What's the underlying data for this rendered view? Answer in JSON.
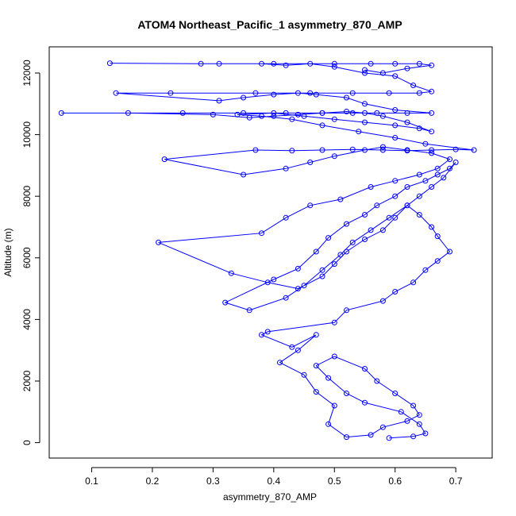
{
  "chart_data": {
    "type": "line",
    "title": "ATOM4 Northeast_Pacific_1 asymmetry_870_AMP",
    "xlabel": "asymmetry_870_AMP",
    "ylabel": "Altitude (m)",
    "xlim": [
      0.03,
      0.76
    ],
    "ylim": [
      -500,
      12850
    ],
    "x_ticks": [
      0.1,
      0.2,
      0.3,
      0.4,
      0.5,
      0.6,
      0.7
    ],
    "y_ticks": [
      0,
      2000,
      4000,
      6000,
      8000,
      10000,
      12000
    ],
    "grid": false,
    "legend": "none",
    "series": [
      {
        "color": "#0000ff",
        "marker": "open-circle",
        "x": [
          0.59,
          0.63,
          0.65,
          0.64,
          0.61,
          0.55,
          0.52,
          0.49,
          0.47,
          0.5,
          0.55,
          0.57,
          0.6,
          0.63,
          0.64,
          0.62,
          0.58,
          0.56,
          0.52,
          0.49,
          0.5,
          0.47,
          0.45,
          0.41,
          0.44,
          0.47,
          0.43,
          0.38,
          0.39,
          0.5,
          0.52,
          0.58,
          0.6,
          0.63,
          0.65,
          0.67,
          0.69,
          0.67,
          0.66,
          0.64,
          0.62,
          0.59,
          0.56,
          0.53,
          0.51,
          0.48,
          0.45,
          0.42,
          0.36,
          0.32,
          0.4,
          0.44,
          0.47,
          0.49,
          0.52,
          0.55,
          0.57,
          0.6,
          0.62,
          0.65,
          0.67,
          0.69,
          0.7,
          0.68,
          0.66,
          0.64,
          0.62,
          0.6,
          0.58,
          0.55,
          0.52,
          0.5,
          0.48,
          0.44,
          0.39,
          0.33,
          0.21,
          0.38,
          0.42,
          0.46,
          0.51,
          0.56,
          0.6,
          0.64,
          0.67,
          0.69,
          0.66,
          0.62,
          0.58,
          0.55,
          0.5,
          0.46,
          0.42,
          0.35,
          0.22,
          0.37,
          0.43,
          0.48,
          0.53,
          0.58,
          0.62,
          0.66,
          0.7,
          0.73,
          0.65,
          0.6,
          0.54,
          0.48,
          0.43,
          0.38,
          0.34,
          0.4,
          0.45,
          0.5,
          0.55,
          0.6,
          0.64,
          0.66,
          0.62,
          0.58,
          0.55,
          0.52,
          0.48,
          0.44,
          0.4,
          0.36,
          0.3,
          0.16,
          0.05,
          0.25,
          0.35,
          0.42,
          0.48,
          0.53,
          0.57,
          0.62,
          0.66,
          0.6,
          0.55,
          0.52,
          0.47,
          0.44,
          0.4,
          0.35,
          0.31,
          0.14,
          0.23,
          0.37,
          0.46,
          0.53,
          0.59,
          0.64,
          0.66,
          0.63,
          0.6,
          0.55,
          0.5,
          0.46,
          0.42,
          0.38,
          0.31,
          0.13,
          0.28,
          0.4,
          0.5,
          0.56,
          0.6,
          0.64,
          0.66,
          0.62,
          0.58,
          0.55
        ],
        "y": [
          150,
          200,
          300,
          600,
          1000,
          1300,
          1600,
          2100,
          2500,
          2800,
          2400,
          2000,
          1600,
          1200,
          900,
          700,
          500,
          250,
          180,
          600,
          1200,
          1650,
          2200,
          2600,
          3000,
          3500,
          3100,
          3500,
          3600,
          3900,
          4300,
          4600,
          4900,
          5200,
          5600,
          5900,
          6200,
          6700,
          7000,
          7400,
          7700,
          7300,
          6900,
          6500,
          6100,
          5600,
          5100,
          4700,
          4300,
          4550,
          5300,
          5650,
          6200,
          6650,
          7100,
          7400,
          7700,
          8000,
          8300,
          8500,
          8700,
          8900,
          9100,
          8600,
          8300,
          8000,
          7700,
          7300,
          6900,
          6600,
          6200,
          5800,
          5400,
          5000,
          5200,
          5500,
          6500,
          6800,
          7300,
          7700,
          7900,
          8300,
          8500,
          8700,
          8900,
          9200,
          9400,
          9500,
          9600,
          9500,
          9300,
          9100,
          8900,
          8700,
          9200,
          9500,
          9480,
          9500,
          9520,
          9500,
          9480,
          9500,
          9520,
          9500,
          9700,
          9900,
          10100,
          10300,
          10500,
          10600,
          10650,
          10700,
          10600,
          10500,
          10400,
          10300,
          10200,
          10100,
          10400,
          10600,
          10700,
          10750,
          10700,
          10650,
          10600,
          10550,
          10650,
          10700,
          10700,
          10700,
          10700,
          10700,
          10700,
          10700,
          10700,
          10700,
          10700,
          10800,
          11000,
          11200,
          11300,
          11350,
          11300,
          11200,
          11100,
          11350,
          11350,
          11350,
          11350,
          11350,
          11350,
          11350,
          11400,
          11600,
          11900,
          12000,
          12200,
          12300,
          12250,
          12300,
          12300,
          12320,
          12300,
          12300,
          12300,
          12300,
          12300,
          12300,
          12250,
          12150,
          12000,
          12100
        ]
      }
    ]
  }
}
